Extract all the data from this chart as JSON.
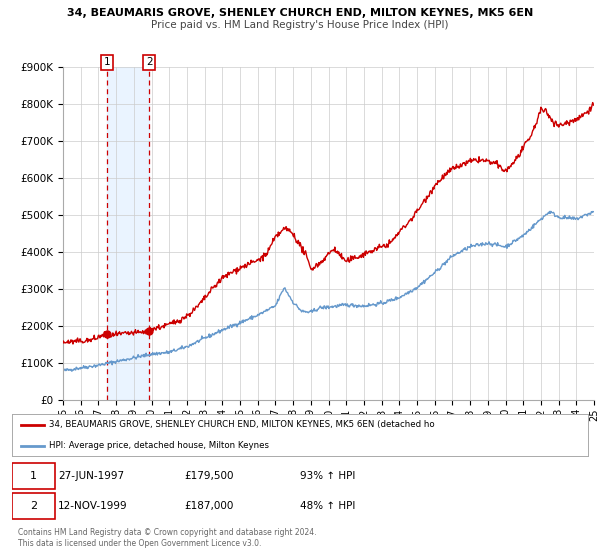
{
  "title_line1": "34, BEAUMARIS GROVE, SHENLEY CHURCH END, MILTON KEYNES, MK5 6EN",
  "title_line2": "Price paid vs. HM Land Registry's House Price Index (HPI)",
  "ylim": [
    0,
    900000
  ],
  "xlim": [
    1995,
    2025
  ],
  "yticks": [
    0,
    100000,
    200000,
    300000,
    400000,
    500000,
    600000,
    700000,
    800000,
    900000
  ],
  "ytick_labels": [
    "£0",
    "£100K",
    "£200K",
    "£300K",
    "£400K",
    "£500K",
    "£600K",
    "£700K",
    "£800K",
    "£900K"
  ],
  "xticks": [
    1995,
    1996,
    1997,
    1998,
    1999,
    2000,
    2001,
    2002,
    2003,
    2004,
    2005,
    2006,
    2007,
    2008,
    2009,
    2010,
    2011,
    2012,
    2013,
    2014,
    2015,
    2016,
    2017,
    2018,
    2019,
    2020,
    2021,
    2022,
    2023,
    2024,
    2025
  ],
  "xtick_labels": [
    "95",
    "96",
    "97",
    "98",
    "99",
    "00",
    "01",
    "02",
    "03",
    "04",
    "05",
    "06",
    "07",
    "08",
    "09",
    "10",
    "11",
    "12",
    "13",
    "14",
    "15",
    "16",
    "17",
    "18",
    "19",
    "20",
    "21",
    "22",
    "23",
    "24",
    "25"
  ],
  "sale1_x": 1997.49,
  "sale1_y": 179500,
  "sale2_x": 1999.87,
  "sale2_y": 187000,
  "sale1_date": "27-JUN-1997",
  "sale1_price": "£179,500",
  "sale1_hpi": "93% ↑ HPI",
  "sale2_date": "12-NOV-1999",
  "sale2_price": "£187,000",
  "sale2_hpi": "48% ↑ HPI",
  "red_line_color": "#cc0000",
  "blue_line_color": "#6699cc",
  "shade_color": "#ddeeff",
  "legend_label_red": "34, BEAUMARIS GROVE, SHENLEY CHURCH END, MILTON KEYNES, MK5 6EN (detached ho",
  "legend_label_blue": "HPI: Average price, detached house, Milton Keynes",
  "footer_line1": "Contains HM Land Registry data © Crown copyright and database right 2024.",
  "footer_line2": "This data is licensed under the Open Government Licence v3.0.",
  "background_color": "#ffffff",
  "grid_color": "#cccccc"
}
